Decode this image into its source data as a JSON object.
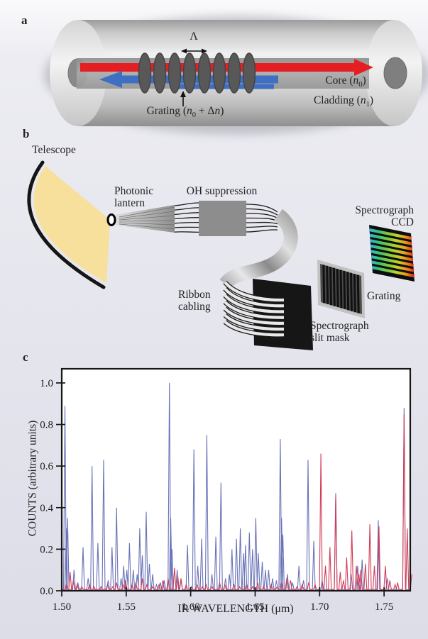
{
  "panel_a": {
    "letter": "a",
    "lambda_label": "Λ",
    "grating_label": {
      "pre": "Grating (",
      "var1": "n",
      "sub1": "0",
      "mid": " + Δ",
      "var2": "n",
      "post": ")"
    },
    "core_label": {
      "pre": "Core (",
      "var": "n",
      "sub": "0",
      "post": ")"
    },
    "cladding_label": {
      "pre": "Cladding (",
      "var": "n",
      "sub": "1",
      "post": ")"
    },
    "colors": {
      "forward_arrow": "#e41e22",
      "reflected_arrow": "#3e6fc2",
      "ring": "#585858"
    }
  },
  "panel_b": {
    "letter": "b",
    "telescope_label": "Telescope",
    "lantern_label_line1": "Photonic",
    "lantern_label_line2": "lantern",
    "oh_label": "OH suppression",
    "ribbon_label_line1": "Ribbon",
    "ribbon_label_line2": "cabling",
    "slit_label_line1": "Spectrograph",
    "slit_label_line2": "slit mask",
    "grating_label": "Grating",
    "ccd_label_line1": "Spectrograph",
    "ccd_label_line2": "CCD",
    "colors": {
      "beam": "#f6e09c",
      "box": "#8d8d8d"
    }
  },
  "panel_c": {
    "letter": "c"
  },
  "chart_data": {
    "type": "line",
    "title": "",
    "xlabel": "IR WAVELENGTH (μm)",
    "ylabel": "COUNTS (arbitrary units)",
    "xlim": [
      1.5,
      1.7703
    ],
    "ylim": [
      0,
      1.068
    ],
    "grid": false,
    "legend": "none",
    "baseline": 0.006,
    "peak_half_width": 0.0011,
    "x_ticks": [
      {
        "v": 1.5,
        "label": "1.50"
      },
      {
        "v": 1.55,
        "label": "1.55"
      },
      {
        "v": 1.6,
        "label": "1.60"
      },
      {
        "v": 1.65,
        "label": "1.65"
      },
      {
        "v": 1.7,
        "label": "1.70"
      },
      {
        "v": 1.75,
        "label": "1.75"
      }
    ],
    "y_ticks": [
      {
        "v": 0.0,
        "label": "0.0"
      },
      {
        "v": 0.2,
        "label": "0.2"
      },
      {
        "v": 0.4,
        "label": "0.4"
      },
      {
        "v": 0.6,
        "label": "0.6"
      },
      {
        "v": 0.8,
        "label": "0.8"
      },
      {
        "v": 1.0,
        "label": "1.0"
      }
    ],
    "series": [
      {
        "name": "blue",
        "color": "#6a73b8",
        "peaks": [
          [
            1.5025,
            0.89
          ],
          [
            1.5035,
            0.3
          ],
          [
            1.5045,
            0.35
          ],
          [
            1.5095,
            0.1
          ],
          [
            1.5125,
            0.04
          ],
          [
            1.5165,
            0.21
          ],
          [
            1.5205,
            0.06
          ],
          [
            1.5235,
            0.6
          ],
          [
            1.528,
            0.23
          ],
          [
            1.5325,
            0.63
          ],
          [
            1.536,
            0.05
          ],
          [
            1.539,
            0.21
          ],
          [
            1.5425,
            0.4
          ],
          [
            1.546,
            0.06
          ],
          [
            1.548,
            0.12
          ],
          [
            1.5505,
            0.1
          ],
          [
            1.5525,
            0.23
          ],
          [
            1.5555,
            0.1
          ],
          [
            1.5585,
            0.08
          ],
          [
            1.5605,
            0.3
          ],
          [
            1.5625,
            0.17
          ],
          [
            1.5655,
            0.38
          ],
          [
            1.568,
            0.13
          ],
          [
            1.5705,
            0.08
          ],
          [
            1.5735,
            0.03
          ],
          [
            1.5765,
            0.04
          ],
          [
            1.5795,
            0.05
          ],
          [
            1.5835,
            1.0
          ],
          [
            1.5845,
            0.35
          ],
          [
            1.5855,
            0.2
          ],
          [
            1.5895,
            0.1
          ],
          [
            1.5925,
            0.05
          ],
          [
            1.5975,
            0.22
          ],
          [
            1.6025,
            0.68
          ],
          [
            1.6055,
            0.12
          ],
          [
            1.6085,
            0.25
          ],
          [
            1.6125,
            0.75
          ],
          [
            1.6165,
            0.08
          ],
          [
            1.6195,
            0.26
          ],
          [
            1.6235,
            0.52
          ],
          [
            1.627,
            0.06
          ],
          [
            1.63,
            0.08
          ],
          [
            1.632,
            0.2
          ],
          [
            1.6355,
            0.25
          ],
          [
            1.6385,
            0.3
          ],
          [
            1.641,
            0.18
          ],
          [
            1.6425,
            0.22
          ],
          [
            1.6455,
            0.28
          ],
          [
            1.648,
            0.2
          ],
          [
            1.6505,
            0.35
          ],
          [
            1.6525,
            0.18
          ],
          [
            1.6555,
            0.14
          ],
          [
            1.658,
            0.1
          ],
          [
            1.6605,
            0.1
          ],
          [
            1.6635,
            0.06
          ],
          [
            1.6665,
            0.05
          ],
          [
            1.6695,
            0.73
          ],
          [
            1.6705,
            0.35
          ],
          [
            1.6715,
            0.27
          ],
          [
            1.675,
            0.08
          ],
          [
            1.679,
            0.04
          ],
          [
            1.684,
            0.12
          ],
          [
            1.6875,
            0.05
          ],
          [
            1.691,
            0.63
          ],
          [
            1.6955,
            0.24
          ],
          [
            1.702,
            0.05
          ],
          [
            1.7125,
            0.47
          ],
          [
            1.7245,
            0.08
          ],
          [
            1.7295,
            0.12
          ],
          [
            1.733,
            0.15
          ],
          [
            1.7455,
            0.34
          ],
          [
            1.7525,
            0.06
          ],
          [
            1.7655,
            0.88
          ]
        ]
      },
      {
        "name": "red",
        "color": "#d13c57",
        "peaks": [
          [
            1.5035,
            0.03
          ],
          [
            1.5065,
            0.09
          ],
          [
            1.509,
            0.05
          ],
          [
            1.512,
            0.03
          ],
          [
            1.5155,
            0.02
          ],
          [
            1.5215,
            0.03
          ],
          [
            1.525,
            0.02
          ],
          [
            1.5305,
            0.02
          ],
          [
            1.5355,
            0.03
          ],
          [
            1.5395,
            0.02
          ],
          [
            1.5425,
            0.04
          ],
          [
            1.5475,
            0.03
          ],
          [
            1.5495,
            0.05
          ],
          [
            1.5545,
            0.03
          ],
          [
            1.5575,
            0.04
          ],
          [
            1.5625,
            0.06
          ],
          [
            1.566,
            0.03
          ],
          [
            1.5705,
            0.02
          ],
          [
            1.5755,
            0.03
          ],
          [
            1.5785,
            0.05
          ],
          [
            1.5825,
            0.06
          ],
          [
            1.5875,
            0.11
          ],
          [
            1.59,
            0.07
          ],
          [
            1.5925,
            0.06
          ],
          [
            1.5965,
            0.03
          ],
          [
            1.6005,
            0.02
          ],
          [
            1.605,
            0.03
          ],
          [
            1.609,
            0.02
          ],
          [
            1.612,
            0.03
          ],
          [
            1.6165,
            0.02
          ],
          [
            1.6225,
            0.04
          ],
          [
            1.6265,
            0.03
          ],
          [
            1.6335,
            0.03
          ],
          [
            1.638,
            0.02
          ],
          [
            1.6435,
            0.03
          ],
          [
            1.648,
            0.02
          ],
          [
            1.652,
            0.04
          ],
          [
            1.6565,
            0.02
          ],
          [
            1.6625,
            0.03
          ],
          [
            1.667,
            0.02
          ],
          [
            1.6705,
            0.04
          ],
          [
            1.6745,
            0.06
          ],
          [
            1.6775,
            0.05
          ],
          [
            1.6825,
            0.02
          ],
          [
            1.6865,
            0.03
          ],
          [
            1.6915,
            0.04
          ],
          [
            1.6965,
            0.03
          ],
          [
            1.701,
            0.66
          ],
          [
            1.7045,
            0.12
          ],
          [
            1.708,
            0.21
          ],
          [
            1.7125,
            0.45
          ],
          [
            1.716,
            0.09
          ],
          [
            1.7185,
            0.05
          ],
          [
            1.721,
            0.16
          ],
          [
            1.725,
            0.29
          ],
          [
            1.7285,
            0.12
          ],
          [
            1.7305,
            0.08
          ],
          [
            1.732,
            0.1
          ],
          [
            1.7355,
            0.13
          ],
          [
            1.739,
            0.32
          ],
          [
            1.7425,
            0.12
          ],
          [
            1.746,
            0.31
          ],
          [
            1.751,
            0.12
          ],
          [
            1.7545,
            0.05
          ],
          [
            1.7585,
            0.03
          ],
          [
            1.7605,
            0.04
          ],
          [
            1.7655,
            0.85
          ],
          [
            1.768,
            0.3
          ],
          [
            1.7715,
            0.08
          ]
        ]
      }
    ]
  }
}
